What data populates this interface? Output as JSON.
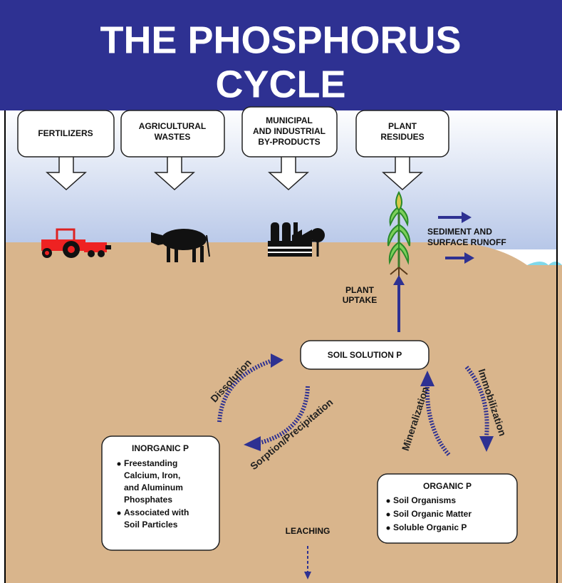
{
  "title": {
    "lines": [
      "THE PHOSPHORUS",
      "CYCLE"
    ]
  },
  "sources": [
    {
      "lines": [
        "FERTILIZERS"
      ]
    },
    {
      "lines": [
        "AGRICULTURAL",
        "WASTES"
      ]
    },
    {
      "lines": [
        "MUNICIPAL",
        "AND INDUSTRIAL",
        "BY-PRODUCTS"
      ]
    },
    {
      "lines": [
        "PLANT",
        "RESIDUES"
      ]
    }
  ],
  "runoff": {
    "lines": [
      "SEDIMENT AND",
      "SURFACE RUNOFF"
    ]
  },
  "uptake": {
    "lines": [
      "PLANT",
      "UPTAKE"
    ]
  },
  "soil_solution": "SOIL SOLUTION P",
  "processes": {
    "dissolution": "Dissolution",
    "sorption": "Sorption/Precipitation",
    "mineralization": "Mineralization",
    "immobilization": "Immobilization"
  },
  "inorganic": {
    "title": "INORGANIC P",
    "items": [
      {
        "lines": [
          "Freestanding",
          "Calcium, Iron,",
          "and Aluminum",
          "Phosphates"
        ]
      },
      {
        "lines": [
          "Associated with",
          "Soil Particles"
        ]
      }
    ]
  },
  "organic": {
    "title": "ORGANIC P",
    "items": [
      "Soil Organisms",
      "Soil Organic Matter",
      "Soluble Organic P"
    ]
  },
  "leaching": "LEACHING"
}
